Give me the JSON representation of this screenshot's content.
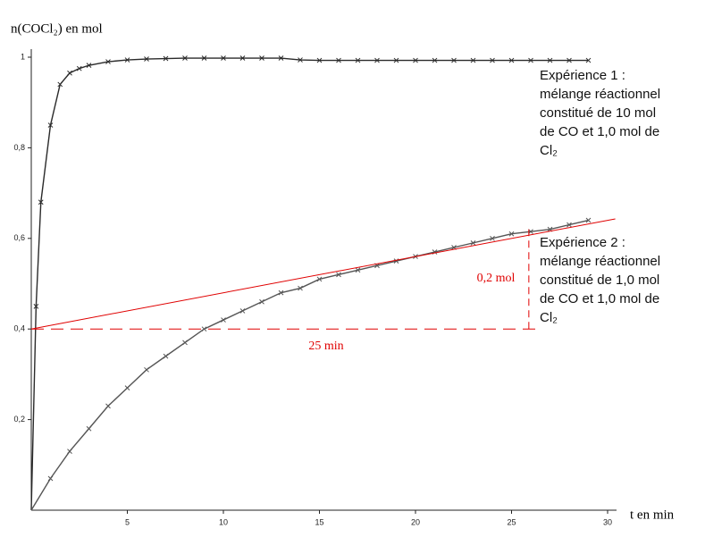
{
  "chart_data": {
    "type": "line",
    "y_label": "n(COCl₂) en mol",
    "x_label": "t en min",
    "xlim": [
      0,
      30
    ],
    "ylim": [
      0,
      1
    ],
    "xticks": [
      5,
      10,
      15,
      20,
      25,
      30
    ],
    "yticks": [
      {
        "value": 0.2,
        "label": "0,2"
      },
      {
        "value": 0.4,
        "label": "0,4"
      },
      {
        "value": 0.6,
        "label": "0,6"
      },
      {
        "value": 0.8,
        "label": "0,8"
      },
      1
    ],
    "series": [
      {
        "name": "Expérience 1",
        "color": "#2a2a2a",
        "x": [
          0,
          0.25,
          0.5,
          1,
          1.5,
          2,
          2.5,
          3,
          4,
          5,
          6,
          7,
          8,
          9,
          10,
          11,
          12,
          13,
          14,
          15,
          16,
          17,
          18,
          19,
          20,
          21,
          22,
          23,
          24,
          25,
          26,
          27,
          28,
          29
        ],
        "values": [
          0,
          0.45,
          0.68,
          0.85,
          0.94,
          0.965,
          0.975,
          0.982,
          0.99,
          0.994,
          0.996,
          0.997,
          0.998,
          0.998,
          0.998,
          0.998,
          0.998,
          0.998,
          0.994,
          0.993,
          0.993,
          0.993,
          0.993,
          0.993,
          0.993,
          0.993,
          0.993,
          0.993,
          0.993,
          0.993,
          0.993,
          0.993,
          0.993,
          0.993
        ],
        "description": [
          "mélange réactionnel",
          "constitué de 10 mol",
          "de CO et 1,0 mol de",
          "Cl₂"
        ]
      },
      {
        "name": "Expérience 2",
        "color": "#555555",
        "x": [
          0,
          1,
          2,
          3,
          4,
          5,
          6,
          7,
          8,
          9,
          10,
          11,
          12,
          13,
          14,
          15,
          16,
          17,
          18,
          19,
          20,
          21,
          22,
          23,
          24,
          25,
          26,
          27,
          28,
          29
        ],
        "values": [
          0,
          0.07,
          0.13,
          0.18,
          0.23,
          0.27,
          0.31,
          0.34,
          0.37,
          0.4,
          0.42,
          0.44,
          0.46,
          0.48,
          0.49,
          0.51,
          0.52,
          0.53,
          0.54,
          0.55,
          0.56,
          0.57,
          0.58,
          0.59,
          0.6,
          0.61,
          0.615,
          0.62,
          0.63,
          0.64
        ],
        "description": [
          "mélange réactionnel",
          "constitué de 1,0 mol",
          "de CO et 1,0 mol de",
          "Cl₂"
        ]
      }
    ],
    "tangent": {
      "color": "#e00000",
      "x": [
        0,
        30.4
      ],
      "y": [
        0.4,
        0.643
      ]
    },
    "construction": {
      "color": "#e00000",
      "horizontal": {
        "x": [
          0,
          26.5
        ],
        "y": 0.4,
        "label": "25 min"
      },
      "vertical": {
        "x": 25.9,
        "y": [
          0.4,
          0.62
        ],
        "label": "0,2 mol"
      }
    }
  }
}
